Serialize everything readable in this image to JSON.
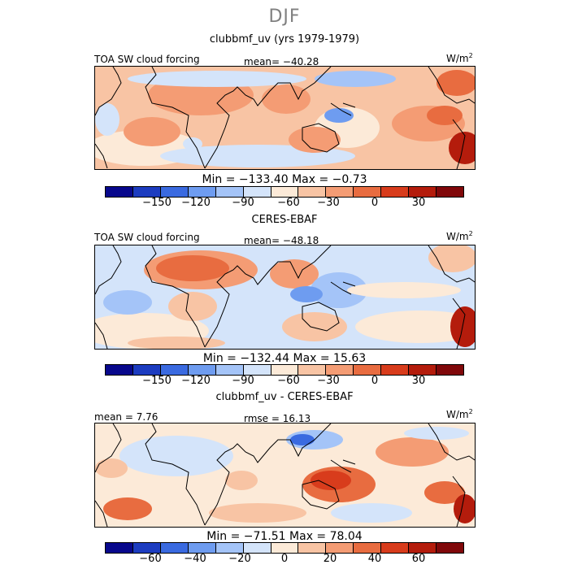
{
  "season": "DJF",
  "colors": [
    "#08088c",
    "#1c3cc0",
    "#3a6ae0",
    "#6e9cf0",
    "#a4c4f8",
    "#d4e4fa",
    "#fcead8",
    "#f8c4a4",
    "#f49c74",
    "#e86c40",
    "#d83c1c",
    "#b41c0c",
    "#80080a"
  ],
  "panels": [
    {
      "title": "clubbmf_uv (yrs 1979-1979)",
      "left_label": "TOA SW cloud forcing",
      "center_label": "mean= −40.28",
      "unit": "W/m",
      "unit_exp": "2",
      "minmax": "Min = −133.40 Max =  −0.73",
      "ticks": [
        "−150",
        "−120",
        "−90",
        "−60",
        "−30",
        "0",
        "30"
      ]
    },
    {
      "title": "CERES-EBAF",
      "left_label": "TOA SW cloud forcing",
      "center_label": "mean= −48.18",
      "unit": "W/m",
      "unit_exp": "2",
      "minmax": "Min = −132.44 Max =  15.63",
      "ticks": [
        "−150",
        "−120",
        "−90",
        "−60",
        "−30",
        "0",
        "30"
      ]
    },
    {
      "title": "clubbmf_uv - CERES-EBAF",
      "left_label": "mean =   7.76",
      "center_label": "rmse =  16.13",
      "unit": "W/m",
      "unit_exp": "2",
      "minmax": "Min = −71.51 Max =  78.04",
      "ticks": [
        "−60",
        "−40",
        "−20",
        "0",
        "20",
        "40",
        "60"
      ]
    }
  ]
}
